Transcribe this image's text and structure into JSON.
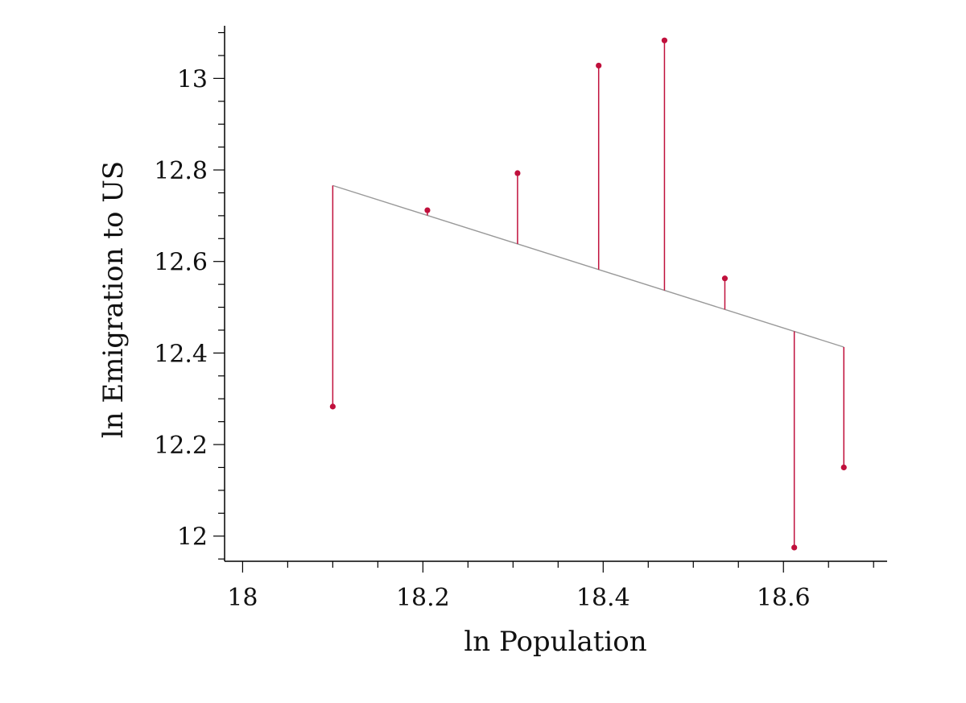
{
  "chart_data": {
    "type": "scatter",
    "xlabel": "ln Population",
    "ylabel": "ln Emigration to US",
    "xlim": [
      17.98,
      18.715
    ],
    "ylim": [
      11.945,
      13.115
    ],
    "x_ticks": [
      18,
      18.2,
      18.4,
      18.6
    ],
    "x_tick_labels": [
      "18",
      "18.2",
      "18.4",
      "18.6"
    ],
    "y_ticks": [
      12,
      12.2,
      12.4,
      12.6,
      12.8,
      13
    ],
    "y_tick_labels": [
      "12",
      "12.2",
      "12.4",
      "12.6",
      "12.8",
      "13"
    ],
    "grid": false,
    "legend": "none",
    "series": [
      {
        "kind": "points",
        "color": "#c0103c",
        "x": [
          18.1,
          18.205,
          18.305,
          18.395,
          18.468,
          18.535,
          18.612,
          18.667
        ],
        "y": [
          12.283,
          12.712,
          12.793,
          13.028,
          13.083,
          12.563,
          11.975,
          12.15
        ]
      },
      {
        "kind": "fit-line",
        "color": "#999999",
        "x": [
          18.1,
          18.667
        ],
        "y": [
          12.766,
          12.413
        ]
      }
    ],
    "residual_color": "#c0103c"
  }
}
